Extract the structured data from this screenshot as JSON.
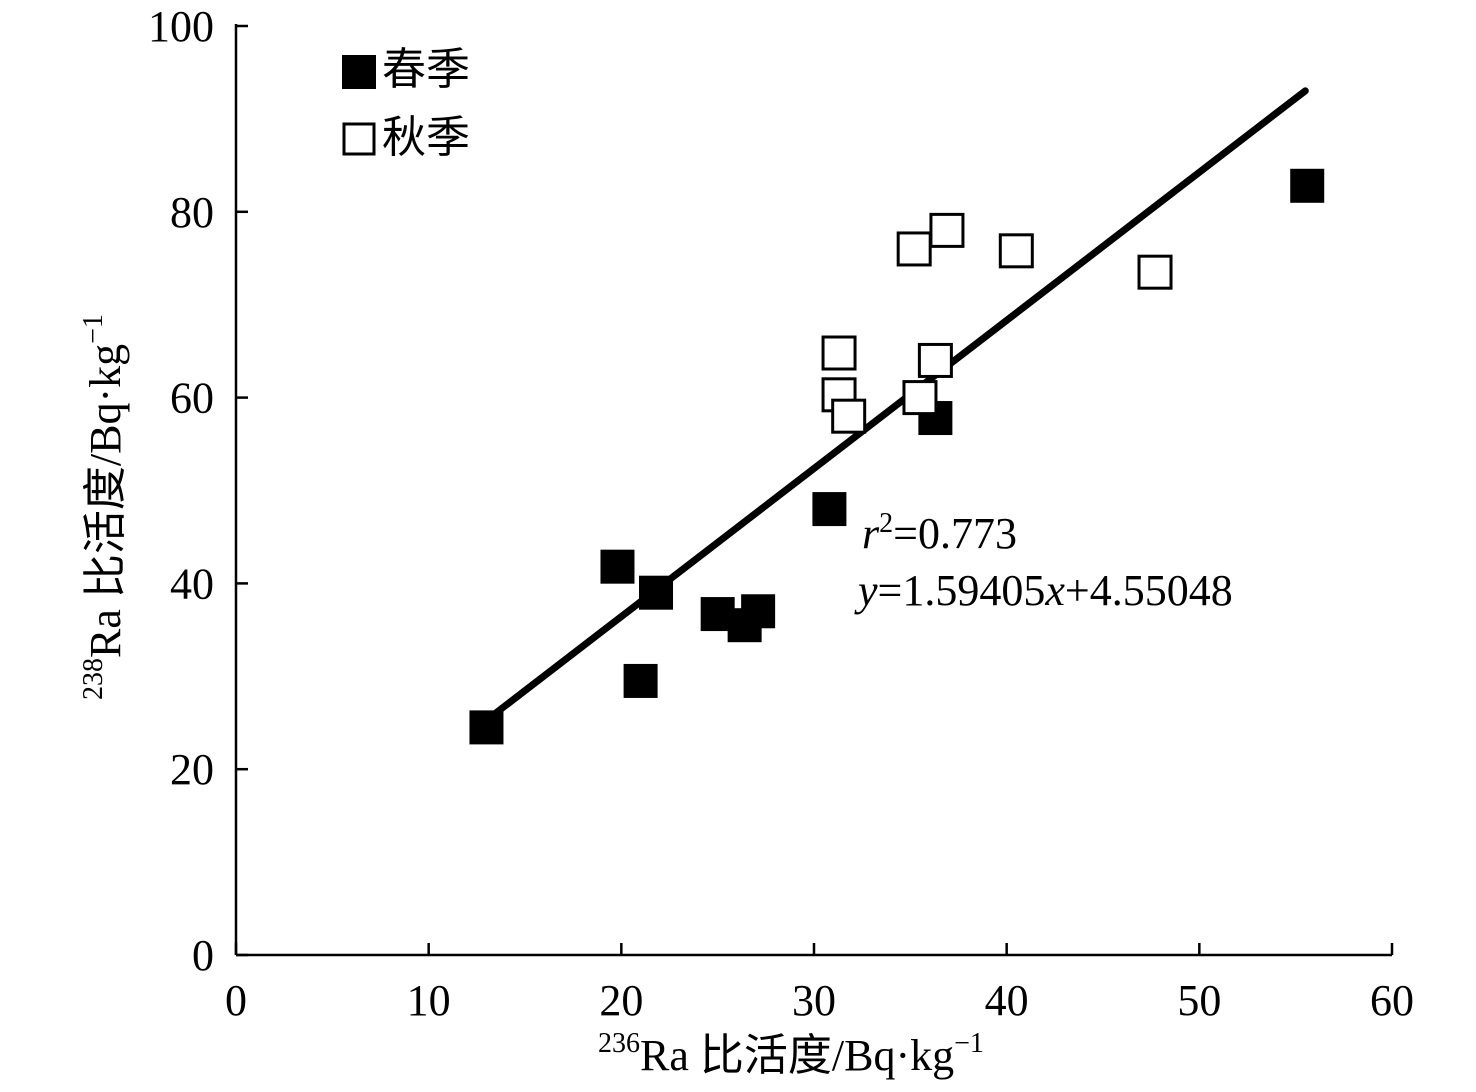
{
  "chart_data": {
    "type": "scatter",
    "xlabel": {
      "isotope_mass": "236",
      "text": "Ra 比活度/Bq·kg",
      "unit_exponent": "−1"
    },
    "ylabel": {
      "isotope_mass": "238",
      "text": "Ra 比活度/Bq·kg",
      "unit_exponent": "−1"
    },
    "xlim": [
      0,
      60
    ],
    "ylim": [
      0,
      100
    ],
    "x_ticks": [
      0,
      10,
      20,
      30,
      40,
      50,
      60
    ],
    "y_ticks": [
      0,
      20,
      40,
      60,
      80,
      100
    ],
    "grid": false,
    "legend_position": "top-left",
    "series": [
      {
        "name": "春季",
        "marker": "filled-square",
        "color": "#000000",
        "points": [
          {
            "x": 13.0,
            "y": 24.5
          },
          {
            "x": 19.8,
            "y": 41.8
          },
          {
            "x": 21.0,
            "y": 29.5
          },
          {
            "x": 21.8,
            "y": 39.0
          },
          {
            "x": 25.0,
            "y": 36.7
          },
          {
            "x": 26.4,
            "y": 35.5
          },
          {
            "x": 27.1,
            "y": 37.0
          },
          {
            "x": 30.8,
            "y": 48.0
          },
          {
            "x": 36.3,
            "y": 57.8
          },
          {
            "x": 55.6,
            "y": 82.8
          }
        ]
      },
      {
        "name": "秋季",
        "marker": "open-square",
        "color": "#000000",
        "points": [
          {
            "x": 31.3,
            "y": 64.8
          },
          {
            "x": 31.3,
            "y": 60.3
          },
          {
            "x": 31.8,
            "y": 58.0
          },
          {
            "x": 35.2,
            "y": 76.0
          },
          {
            "x": 35.5,
            "y": 60.0
          },
          {
            "x": 36.3,
            "y": 64.0
          },
          {
            "x": 36.9,
            "y": 78.0
          },
          {
            "x": 40.5,
            "y": 75.8
          },
          {
            "x": 47.7,
            "y": 73.5
          }
        ]
      }
    ],
    "trendline": {
      "x_start": 13.0,
      "x_end": 55.5,
      "slope": 1.59405,
      "intercept": 4.55048
    },
    "annotation": {
      "r2_var": "r",
      "r2_sup": "2",
      "r2_value": "=0.773",
      "eq_y": "y",
      "eq_mid": "=1.59405",
      "eq_x": "x",
      "eq_tail": "+4.55048"
    }
  }
}
